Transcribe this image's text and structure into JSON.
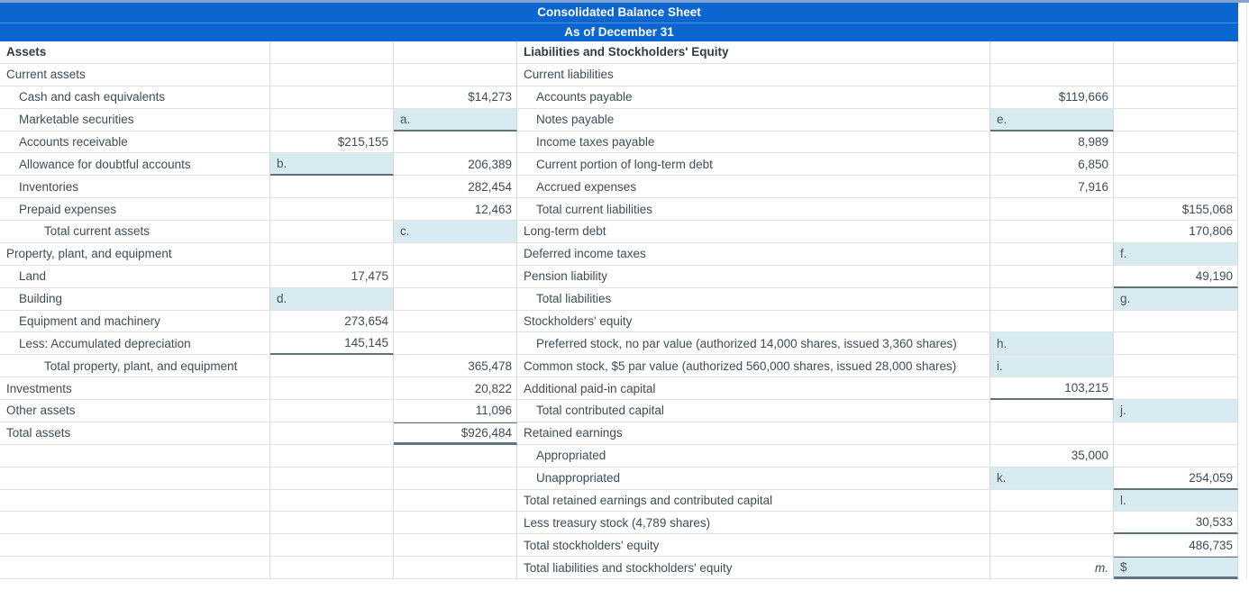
{
  "title": {
    "line1": "Consolidated Balance Sheet",
    "line2": "As of December 31"
  },
  "colors": {
    "header-bg": "#0b66d0",
    "strip": "#84a4cf",
    "blank-fill": "#d8eaf2",
    "dark-line": "#5f7078",
    "thick-line": "#5f7385",
    "grid-line": "#d9d9d9",
    "text": "#3e4c56"
  },
  "left_table": {
    "rows": [
      {
        "label": "Assets",
        "bold": true,
        "indent": 0
      },
      {
        "label": "Current assets",
        "indent": 0
      },
      {
        "label": "Cash and cash equivalents",
        "indent": 1,
        "c2": {
          "kind": "value",
          "text": "$14,273"
        }
      },
      {
        "label": "Marketable securities",
        "indent": 1,
        "c2": {
          "kind": "blank",
          "text": "a.",
          "underline": true
        }
      },
      {
        "label": "Accounts receivable",
        "indent": 1,
        "c1": {
          "kind": "value",
          "text": "$215,155"
        }
      },
      {
        "label": "Allowance for doubtful accounts",
        "indent": 1,
        "c1": {
          "kind": "blank",
          "text": "b.",
          "underline": true
        },
        "c2": {
          "kind": "value",
          "text": "206,389"
        }
      },
      {
        "label": "Inventories",
        "indent": 1,
        "c2": {
          "kind": "value",
          "text": "282,454"
        }
      },
      {
        "label": "Prepaid expenses",
        "indent": 1,
        "c2": {
          "kind": "value",
          "text": "12,463"
        }
      },
      {
        "label": "Total current assets",
        "indent": 2,
        "c2": {
          "kind": "blank",
          "text": "c."
        }
      },
      {
        "label": "Property, plant, and equipment",
        "indent": 0
      },
      {
        "label": "Land",
        "indent": 1,
        "c1": {
          "kind": "value",
          "text": "17,475"
        }
      },
      {
        "label": "Building",
        "indent": 1,
        "c1": {
          "kind": "blank",
          "text": "d."
        }
      },
      {
        "label": "Equipment and machinery",
        "indent": 1,
        "c1": {
          "kind": "value",
          "text": "273,654"
        }
      },
      {
        "label": "Less: Accumulated depreciation",
        "indent": 1,
        "c1": {
          "kind": "value",
          "text": "145,145",
          "underline": true
        }
      },
      {
        "label": "Total property, plant, and equipment",
        "indent": 2,
        "c2": {
          "kind": "value",
          "text": "365,478"
        }
      },
      {
        "label": "Investments",
        "indent": 0,
        "c2": {
          "kind": "value",
          "text": "20,822"
        }
      },
      {
        "label": "Other assets",
        "indent": 0,
        "c2": {
          "kind": "value",
          "text": "11,096"
        }
      },
      {
        "label": "Total assets",
        "indent": 0,
        "c2": {
          "kind": "value",
          "text": "$926,484",
          "top": true,
          "thick": true
        }
      },
      {
        "label": "",
        "indent": 0
      },
      {
        "label": "",
        "indent": 0
      },
      {
        "label": "",
        "indent": 0
      },
      {
        "label": "",
        "indent": 0
      },
      {
        "label": "",
        "indent": 0
      },
      {
        "label": "",
        "indent": 0
      }
    ]
  },
  "right_table": {
    "rows": [
      {
        "label": "Liabilities and Stockholders' Equity",
        "bold": true,
        "indent": 0
      },
      {
        "label": "Current liabilities",
        "indent": 0
      },
      {
        "label": "Accounts payable",
        "indent": 1,
        "c1": {
          "kind": "value",
          "text": "$119,666"
        }
      },
      {
        "label": "Notes payable",
        "indent": 1,
        "c1": {
          "kind": "blank",
          "text": "e.",
          "underline": true
        }
      },
      {
        "label": "Income taxes payable",
        "indent": 1,
        "c1": {
          "kind": "value",
          "text": "8,989"
        }
      },
      {
        "label": "Current portion of long-term debt",
        "indent": 1,
        "c1": {
          "kind": "value",
          "text": "6,850"
        }
      },
      {
        "label": "Accrued expenses",
        "indent": 1,
        "c1": {
          "kind": "value",
          "text": "7,916"
        }
      },
      {
        "label": "Total current liabilities",
        "indent": 1,
        "c2": {
          "kind": "value",
          "text": "$155,068"
        }
      },
      {
        "label": "Long-term debt",
        "indent": 0,
        "c2": {
          "kind": "value",
          "text": "170,806"
        }
      },
      {
        "label": "Deferred income taxes",
        "indent": 0,
        "c2": {
          "kind": "blank",
          "text": "f."
        }
      },
      {
        "label": "Pension liability",
        "indent": 0,
        "c2": {
          "kind": "value",
          "text": "49,190",
          "underline": true
        }
      },
      {
        "label": "Total liabilities",
        "indent": 1,
        "c2": {
          "kind": "blank",
          "text": "g."
        }
      },
      {
        "label": "Stockholders' equity",
        "indent": 0
      },
      {
        "label": "Preferred stock, no par value (authorized 14,000 shares, issued 3,360 shares)",
        "indent": 1,
        "c1": {
          "kind": "blank",
          "text": "h."
        }
      },
      {
        "label": "Common stock, $5 par value (authorized 560,000 shares, issued 28,000 shares)",
        "indent": 0,
        "c1": {
          "kind": "blank",
          "text": "i."
        }
      },
      {
        "label": "Additional paid-in capital",
        "indent": 0,
        "c1": {
          "kind": "value",
          "text": "103,215",
          "underline": true
        }
      },
      {
        "label": "Total contributed capital",
        "indent": 1,
        "c2": {
          "kind": "blank",
          "text": "j."
        }
      },
      {
        "label": "Retained earnings",
        "indent": 0
      },
      {
        "label": "Appropriated",
        "indent": 1,
        "c1": {
          "kind": "value",
          "text": "35,000"
        }
      },
      {
        "label": "Unappropriated",
        "indent": 1,
        "c1": {
          "kind": "blank",
          "text": "k."
        },
        "c2": {
          "kind": "value",
          "text": "254,059",
          "underline": true
        }
      },
      {
        "label": "Total retained earnings and contributed capital",
        "indent": 0,
        "c2": {
          "kind": "blank",
          "text": "l."
        }
      },
      {
        "label": "Less treasury stock (4,789 shares)",
        "indent": 0,
        "c2": {
          "kind": "value",
          "text": "30,533",
          "underline": true
        }
      },
      {
        "label": "Total stockholders' equity",
        "indent": 0,
        "c2": {
          "kind": "value",
          "text": "486,735"
        }
      },
      {
        "label": "Total liabilities and stockholders' equity",
        "indent": 0,
        "c1": {
          "kind": "note",
          "text": "m."
        },
        "c2": {
          "kind": "blank",
          "text": "$",
          "top": true,
          "thick": true
        }
      }
    ]
  }
}
